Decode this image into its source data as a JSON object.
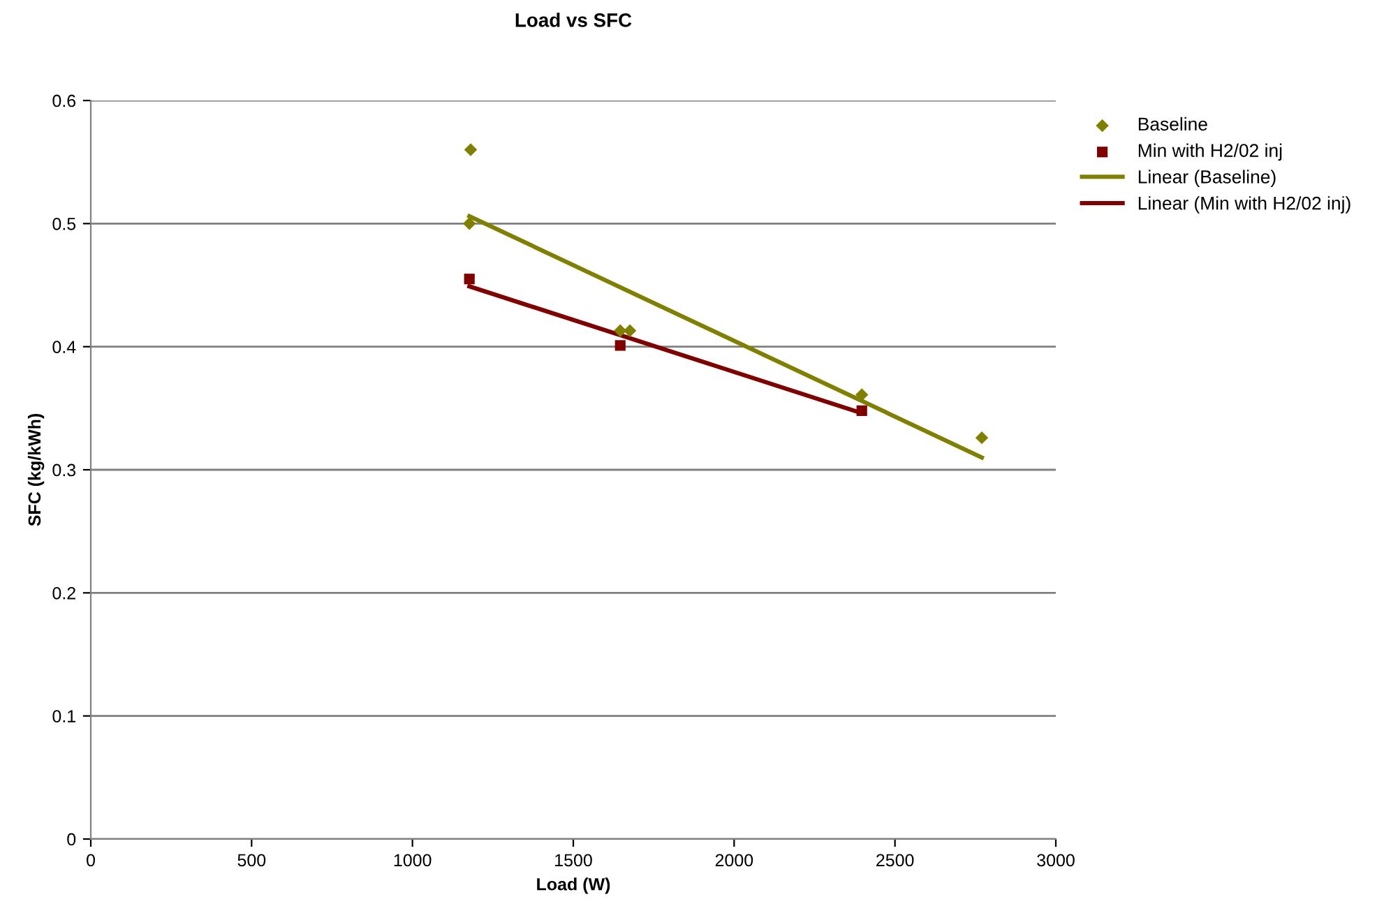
{
  "chart_data": {
    "type": "scatter",
    "title": "Load vs SFC",
    "xlabel": "Load (W)",
    "ylabel": "SFC (kg/kWh)",
    "xlim": [
      0,
      3000
    ],
    "xticks": [
      0,
      500,
      1000,
      1500,
      2000,
      2500,
      3000
    ],
    "ylim": [
      0,
      0.6
    ],
    "yticks": [
      0,
      0.1,
      0.2,
      0.3,
      0.4,
      0.5,
      0.6
    ],
    "grid": "y",
    "legend": "top right",
    "series": [
      {
        "name": "Baseline",
        "marker": "diamond",
        "color": "#808000",
        "x": [
          1181,
          1177,
          1646,
          1676,
          2397,
          2770
        ],
        "values": [
          0.56,
          0.5,
          0.413,
          0.413,
          0.361,
          0.326
        ]
      },
      {
        "name": "Min with H2/02 inj",
        "marker": "square",
        "color": "#800000",
        "x": [
          1177,
          1646,
          2397
        ],
        "values": [
          0.455,
          0.401,
          0.348
        ]
      },
      {
        "name": "Linear (Baseline)",
        "type": "line",
        "marker": "none",
        "color": "#808000",
        "x": [
          1177,
          2770
        ],
        "values": [
          0.506,
          0.31
        ]
      },
      {
        "name": "Linear (Min with H2/02 inj)",
        "type": "line",
        "marker": "none",
        "color": "#800000",
        "x": [
          1177,
          2397
        ],
        "values": [
          0.449,
          0.346
        ]
      }
    ]
  }
}
